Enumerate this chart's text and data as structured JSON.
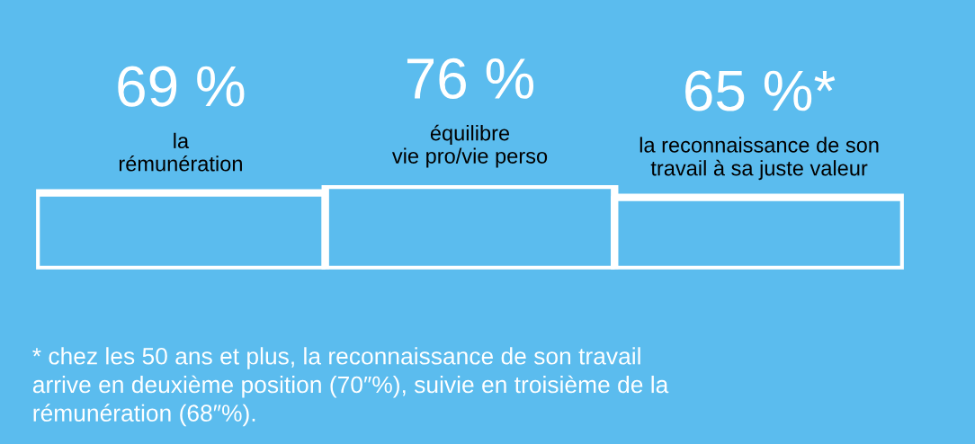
{
  "chart_data": {
    "type": "bar",
    "categories": [
      "la\nrémunération",
      "équilibre\nvie pro/vie perso",
      "la reconnaissance de son\ntravail à sa juste valeur"
    ],
    "values": [
      69,
      76,
      65
    ],
    "value_labels": [
      "69 %",
      "76 %",
      "65 %*"
    ],
    "color": "#5bbcee",
    "annotations": [
      "* chez les 50 ans et plus, la reconnaissance de son travail\narrive en deuxième position (70″%), suivie en troisième de la\nrémunération (68″%)."
    ]
  }
}
